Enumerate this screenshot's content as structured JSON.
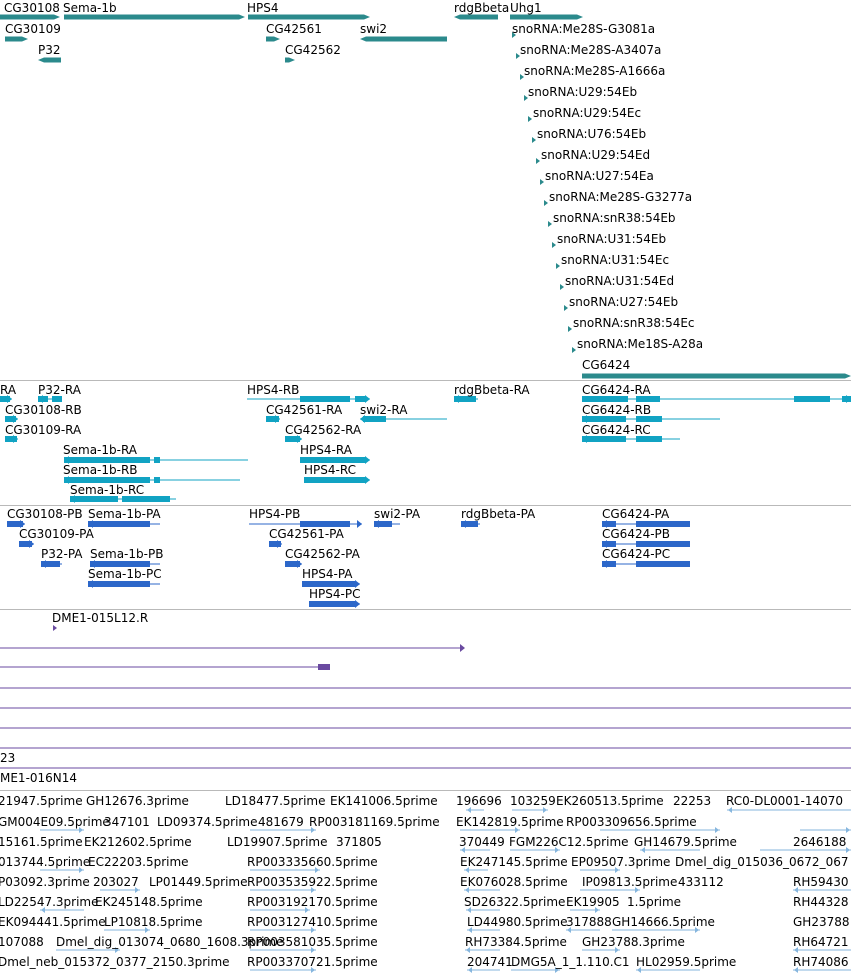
{
  "colors": {
    "gene": "#2b8a8c",
    "transcript": "#11a3c3",
    "protein": "#2c67c9",
    "clone": "#6a4aa0",
    "est": "#86b6de",
    "separator": "#b9b9b9",
    "snorna": "#2b8a8c"
  },
  "icons": {
    "feature_arrow": "triangle-arrow-icon"
  },
  "gene_track": {
    "labels": [
      "CG30108",
      "Sema-1b",
      "HPS4",
      "rdgBbeta",
      "Uhg1",
      "CG30109",
      "CG42561",
      "swi2",
      "P32",
      "CG42562",
      "snoRNA:Me28S-G3081a",
      "snoRNA:Me28S-A3407a",
      "snoRNA:Me28S-A1666a",
      "snoRNA:U29:54Eb",
      "snoRNA:U29:54Ec",
      "snoRNA:U76:54Eb",
      "snoRNA:U29:54Ed",
      "snoRNA:U27:54Ea",
      "snoRNA:Me28S-G3277a",
      "snoRNA:snR38:54Eb",
      "snoRNA:U31:54Eb",
      "snoRNA:U31:54Ec",
      "snoRNA:U31:54Ed",
      "snoRNA:U27:54Eb",
      "snoRNA:snR38:54Ec",
      "snoRNA:Me18S-A28a",
      "CG6424"
    ]
  },
  "transcript_track": {
    "labels": [
      "RA",
      "P32-RA",
      "HPS4-RB",
      "rdgBbeta-RA",
      "CG6424-RA",
      "CG30108-RB",
      "CG42561-RA",
      "swi2-RA",
      "CG6424-RB",
      "CG30109-RA",
      "CG42562-RA",
      "CG6424-RC",
      "Sema-1b-RA",
      "HPS4-RA",
      "Sema-1b-RB",
      "HPS4-RC",
      "Sema-1b-RC"
    ]
  },
  "protein_track": {
    "labels": [
      "CG30108-PB",
      "Sema-1b-PA",
      "HPS4-PB",
      "swi2-PA",
      "rdgBbeta-PA",
      "CG6424-PA",
      "CG30109-PA",
      "CG42561-PA",
      "CG6424-PB",
      "P32-PA",
      "Sema-1b-PB",
      "CG42562-PA",
      "CG6424-PC",
      "Sema-1b-PC",
      "HPS4-PA",
      "HPS4-PC"
    ]
  },
  "clone_track": {
    "labels": [
      "DME1-015L12.R",
      "23",
      "ME1-016N14"
    ]
  },
  "est_track": {
    "labels": [
      "21947.5prime",
      "GH12676.3prime",
      "LD18477.5prime",
      "EK141006.5prime",
      "196696",
      "103259",
      "EK260513.5prime",
      "22253",
      "RC0-DL0001-14070",
      "GM004E09.5prime",
      "347101",
      "LD09374.5prime",
      "481679",
      "RP003181169.5prime",
      "EK142819.5prime",
      "RP003309656.5prime",
      "15161.5prime",
      "EK212602.5prime",
      "LD19907.5prime",
      "371805",
      "370449",
      "FGM226C12.5prime",
      "GH14679.5prime",
      "2646188",
      "013744.5prime",
      "EC22203.5prime",
      "RP003335660.5prime",
      "EK247145.5prime",
      "EP09507.3prime",
      "Dmel_dig_015036_0672_067",
      "P03092.3prime",
      "203027",
      "LP01449.5prime",
      "RP003535922.5prime",
      "EK076028.5prime",
      "IP09813.5prime",
      "433112",
      "RH59430",
      "LD22547.3prime",
      "EK245148.5prime",
      "RP003192170.5prime",
      "SD26322.5prime",
      "EK19905",
      "1.5prime",
      "RH44328",
      "EK094441.5prime",
      "LP10818.5prime",
      "RP003127410.5prime",
      "LD44980.5prime",
      "317888",
      "GH14666.5prime",
      "GH23788",
      "107088",
      "Dmel_dig_013074_0680_1608.3prime",
      "RP003581035.5prime",
      "RH73384.5prime",
      "GH23788.3prime",
      "RH64721",
      "Dmel_neb_015372_0377_2150.3prime",
      "RP003370721.5prime",
      "204741",
      "DMG5A_1_1.110.C1",
      "HL02959.5prime",
      "RH74086"
    ]
  }
}
